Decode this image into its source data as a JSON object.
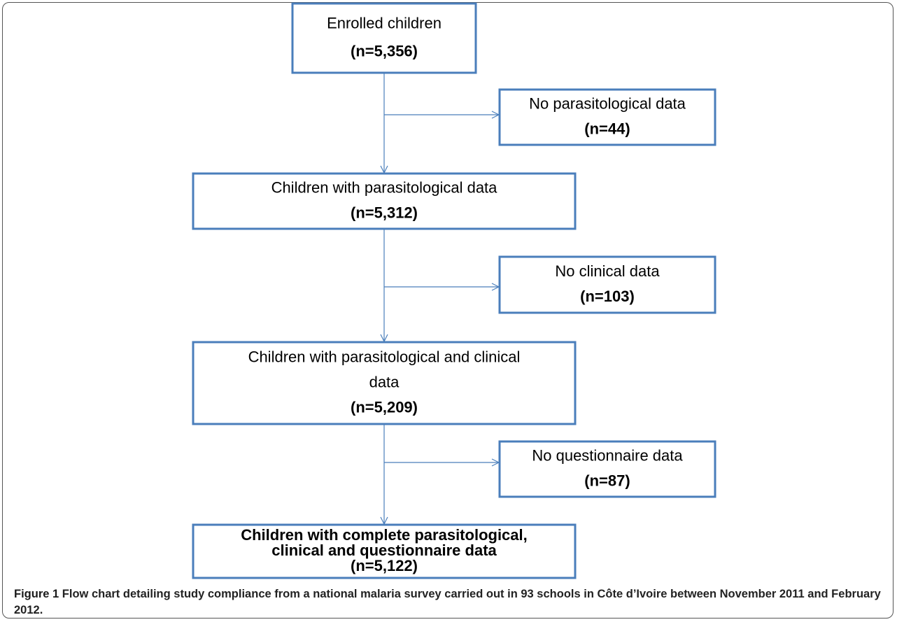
{
  "nodes": [
    {
      "lines": [
        "Enrolled children"
      ],
      "count": "(n=5,356)"
    },
    {
      "lines": [
        "No parasitological data"
      ],
      "count": "(n=44)"
    },
    {
      "lines": [
        "Children with parasitological data"
      ],
      "count": "(n=5,312)"
    },
    {
      "lines": [
        "No clinical data"
      ],
      "count": "(n=103)"
    },
    {
      "lines": [
        "Children with parasitological and clinical",
        "data"
      ],
      "count": "(n=5,209)"
    },
    {
      "lines": [
        "No questionnaire data"
      ],
      "count": "(n=87)"
    },
    {
      "lines": [
        "Children with complete parasitological,",
        "clinical and questionnaire data"
      ],
      "count": "(n=5,122)"
    }
  ],
  "caption": {
    "label": "Figure 1",
    "text": "Flow chart detailing study compliance from a national malaria survey carried out in 93 schools in Côte d’Ivoire between November 2011 and February 2012."
  }
}
